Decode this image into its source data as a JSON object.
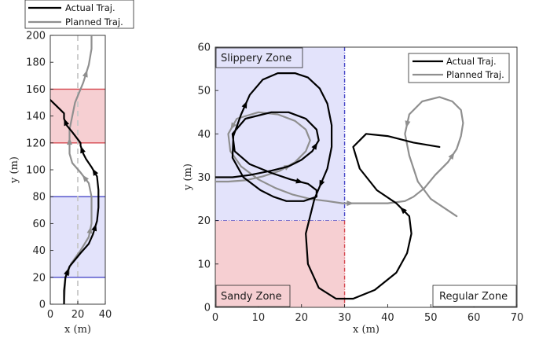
{
  "chart_data": [
    {
      "type": "line",
      "xlabel": "x (m)",
      "ylabel": "y (m)",
      "xlim": [
        0,
        40
      ],
      "ylim": [
        0,
        200
      ],
      "xticks": [
        "0",
        "20",
        "40"
      ],
      "yticks": [
        "0",
        "20",
        "40",
        "60",
        "80",
        "100",
        "120",
        "140",
        "160",
        "180",
        "200"
      ],
      "legend": {
        "placement": "top"
      },
      "regions": [
        {
          "kind": "slippery",
          "color": "#e3e3fb",
          "edge": "#4848c8",
          "x": [
            0,
            40
          ],
          "y": [
            20,
            80
          ]
        },
        {
          "kind": "sandy",
          "color": "#f6cfd2",
          "edge": "#d64850",
          "x": [
            0,
            40
          ],
          "y": [
            120,
            160
          ]
        }
      ],
      "reference_line": {
        "x": 20,
        "color": "#c8c8c8",
        "style": "dashed"
      },
      "series": [
        {
          "name": "Actual Traj.",
          "color": "#000000",
          "x": [
            10,
            10,
            11,
            14,
            22,
            28,
            31,
            34,
            35,
            35,
            34,
            30,
            26,
            24,
            22,
            22,
            16,
            12,
            10,
            10,
            6,
            0
          ],
          "y": [
            0,
            10,
            20,
            28,
            38,
            45,
            52,
            62,
            72,
            85,
            95,
            102,
            108,
            112,
            118,
            120,
            128,
            133,
            138,
            142,
            146,
            152
          ]
        },
        {
          "name": "Planned Traj.",
          "color": "#8f8f8f",
          "x": [
            10,
            11,
            15,
            22,
            28,
            30,
            30,
            28,
            22,
            16,
            14,
            14,
            18,
            24,
            28,
            30,
            30
          ],
          "y": [
            0,
            20,
            30,
            40,
            50,
            60,
            80,
            90,
            98,
            105,
            112,
            130,
            150,
            165,
            178,
            190,
            200
          ]
        }
      ]
    },
    {
      "type": "line",
      "xlabel": "x (m)",
      "ylabel": "y (m)",
      "xlim": [
        0,
        70
      ],
      "ylim": [
        0,
        60
      ],
      "xticks": [
        "0",
        "10",
        "20",
        "30",
        "40",
        "50",
        "60",
        "70"
      ],
      "yticks": [
        "0",
        "10",
        "20",
        "30",
        "40",
        "50",
        "60"
      ],
      "legend": {
        "placement": "top-right"
      },
      "zones": [
        {
          "label": "Slippery Zone",
          "color": "#e3e3fb",
          "edge": "#4848c8",
          "x": [
            0,
            30
          ],
          "y": [
            20,
            60
          ]
        },
        {
          "label": "Sandy Zone",
          "color": "#f6cfd2",
          "edge": "#d64850",
          "x": [
            0,
            30
          ],
          "y": [
            0,
            20
          ]
        },
        {
          "label": "Regular Zone",
          "x": [
            30,
            70
          ],
          "y": [
            0,
            60
          ]
        }
      ],
      "series": [
        {
          "name": "Actual Traj.",
          "color": "#000000",
          "x": [
            0,
            4,
            8,
            13,
            17,
            20,
            22.5,
            24,
            23.5,
            21,
            17,
            13,
            7,
            4,
            4.5,
            8,
            13,
            17.5,
            21.5,
            23.5,
            23.5,
            20.5,
            16.5,
            13.5,
            10.5,
            6.5,
            4,
            4.2,
            6,
            8,
            11,
            14.5,
            18.5,
            21.5,
            24.2,
            26,
            27,
            27,
            26,
            23,
            21,
            21.5,
            24,
            28,
            32,
            37,
            42,
            44.5,
            45.5,
            45,
            42,
            37.5,
            33.5,
            32,
            35,
            40,
            46,
            52
          ],
          "y": [
            30,
            30,
            30.5,
            31.5,
            32.5,
            34,
            36,
            38.5,
            41,
            43.5,
            45,
            45,
            43.5,
            40,
            36,
            33,
            31,
            29.5,
            28.5,
            27,
            25.5,
            24.5,
            24.5,
            25.5,
            27,
            30,
            34.5,
            39.5,
            44.5,
            49,
            52.5,
            54,
            54,
            53,
            50.5,
            47,
            42,
            37,
            32,
            25,
            17,
            10,
            4.5,
            2,
            2,
            4,
            8,
            12.5,
            17,
            21,
            24,
            27,
            32,
            37,
            40,
            39.5,
            38,
            37
          ]
        },
        {
          "name": "Planned Traj.",
          "color": "#8f8f8f",
          "x": [
            0,
            3,
            7,
            11,
            15,
            18.5,
            21,
            22,
            21,
            18.5,
            14.5,
            10,
            5,
            3,
            3.5,
            6,
            10,
            14,
            18,
            22,
            26,
            29.5,
            33,
            36,
            40,
            44,
            46,
            48.5,
            51,
            54,
            56,
            57,
            57.5,
            57,
            55,
            52,
            48,
            45,
            44,
            45,
            47,
            50,
            53,
            56
          ],
          "y": [
            29,
            29,
            29.3,
            30.2,
            31.5,
            33.5,
            36,
            38.5,
            41,
            43,
            44.5,
            45,
            43.5,
            40,
            36,
            32.5,
            29.5,
            27.5,
            26,
            25,
            24.5,
            24,
            24,
            24,
            24,
            24.5,
            25.5,
            27.5,
            30.5,
            33.5,
            36.5,
            39.5,
            42.5,
            45.5,
            47.5,
            48.5,
            47.5,
            44.5,
            40,
            35,
            29,
            25,
            23,
            21
          ]
        }
      ]
    }
  ]
}
